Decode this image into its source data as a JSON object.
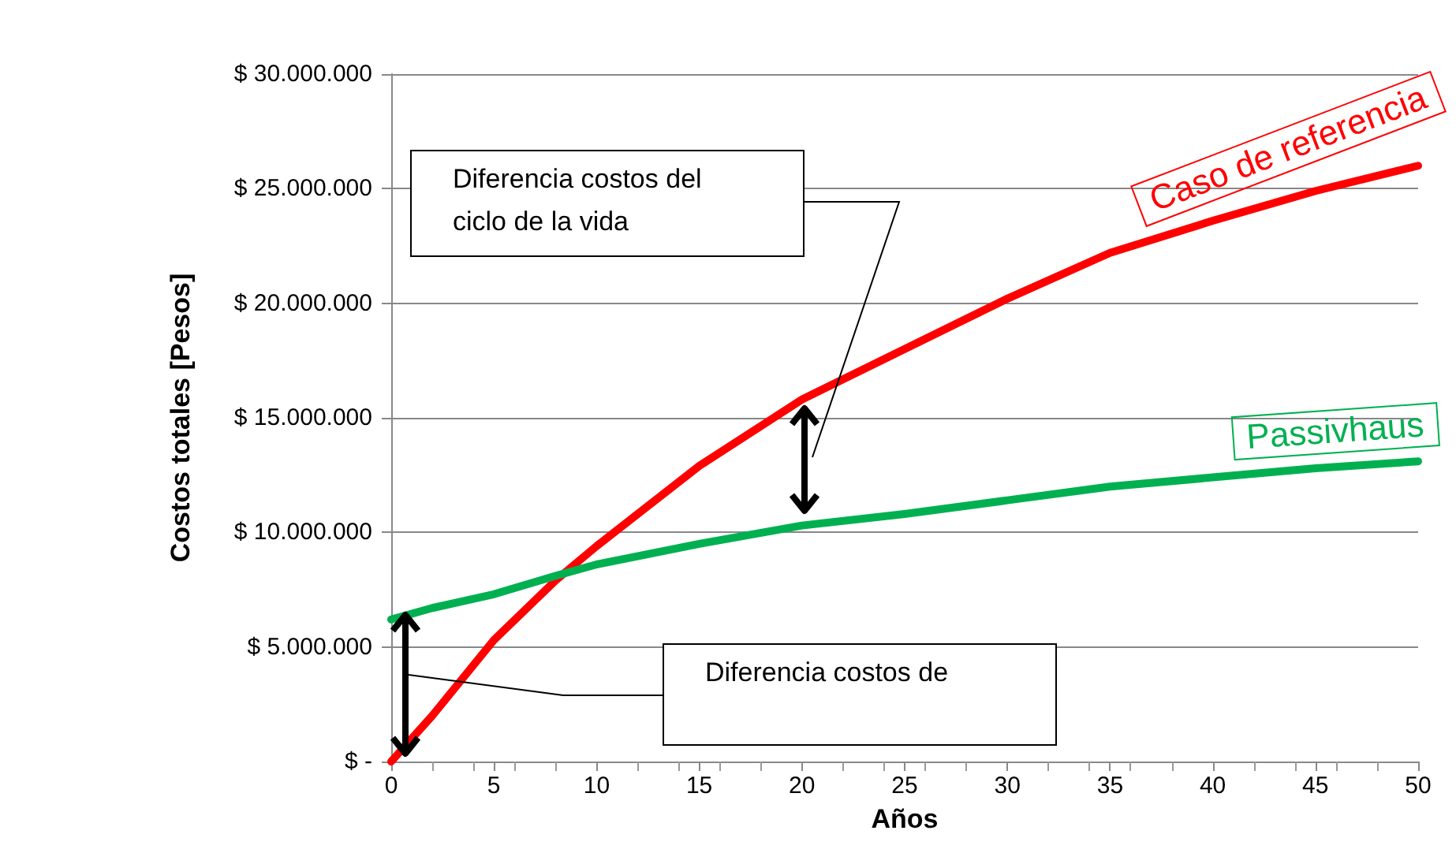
{
  "chart_data": {
    "type": "line",
    "xlabel": "Años",
    "ylabel": "Costos totales [Pesos]",
    "x": [
      0,
      2,
      5,
      8,
      10,
      15,
      20,
      25,
      30,
      35,
      40,
      45,
      50
    ],
    "series": [
      {
        "name": "Caso de referencia",
        "color": "#ff0000",
        "values": [
          0,
          2000000,
          5300000,
          7900000,
          9400000,
          12900000,
          15800000,
          18000000,
          20200000,
          22200000,
          23600000,
          24900000,
          26000000
        ]
      },
      {
        "name": "Passivhaus",
        "color": "#00b050",
        "values": [
          6200000,
          6700000,
          7300000,
          8100000,
          8600000,
          9500000,
          10300000,
          10800000,
          11400000,
          12000000,
          12400000,
          12800000,
          13100000
        ]
      }
    ],
    "xlim": [
      0,
      50
    ],
    "xticks": [
      0,
      5,
      10,
      15,
      20,
      25,
      30,
      35,
      40,
      45,
      50
    ],
    "ylim": [
      0,
      30000000
    ],
    "yticks": [
      {
        "value": 0,
        "label": "$ -"
      },
      {
        "value": 5000000,
        "label": "$ 5.000.000"
      },
      {
        "value": 10000000,
        "label": "$ 10.000.000"
      },
      {
        "value": 15000000,
        "label": "$ 15.000.000"
      },
      {
        "value": 20000000,
        "label": "$ 20.000.000"
      },
      {
        "value": 25000000,
        "label": "$ 25.000.000"
      },
      {
        "value": 30000000,
        "label": "$ 30.000.000"
      }
    ],
    "grid": "y",
    "marker": "none",
    "line_style": "solid",
    "legend": false,
    "annotations": [
      "Diferencia costos de",
      "Diferencia costos del ciclo de la vida"
    ]
  }
}
